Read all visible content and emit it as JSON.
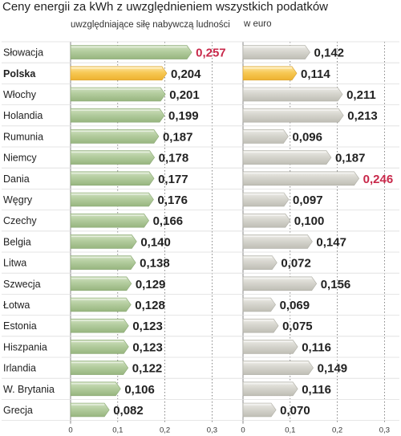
{
  "title": "Ceny energii za kWh z uwzględnieniem wszystkich podatków",
  "chart_data": [
    {
      "type": "bar",
      "orientation": "horizontal",
      "subtitle": "uwzględniające siłę nabywczą ludności",
      "categories": [
        "Słowacja",
        "Polska",
        "Włochy",
        "Holandia",
        "Rumunia",
        "Niemcy",
        "Dania",
        "Węgry",
        "Czechy",
        "Belgia",
        "Litwa",
        "Szwecja",
        "Łotwa",
        "Estonia",
        "Hiszpania",
        "Irlandia",
        "W. Brytania",
        "Grecja"
      ],
      "values": [
        0.257,
        0.204,
        0.201,
        0.199,
        0.187,
        0.178,
        0.177,
        0.176,
        0.166,
        0.14,
        0.138,
        0.129,
        0.128,
        0.123,
        0.123,
        0.122,
        0.106,
        0.082
      ],
      "labels": [
        "0,257",
        "0,204",
        "0,201",
        "0,199",
        "0,187",
        "0,178",
        "0,177",
        "0,176",
        "0,166",
        "0,140",
        "0,138",
        "0,129",
        "0,128",
        "0,123",
        "0,123",
        "0,122",
        "0,106",
        "0,082"
      ],
      "xlim": [
        0,
        0.3
      ],
      "ticks": [
        "0",
        "0,1",
        "0,2",
        "0,3"
      ],
      "highlight_max": "Słowacja",
      "highlight_category": "Polska"
    },
    {
      "type": "bar",
      "orientation": "horizontal",
      "subtitle": "w euro",
      "categories": [
        "Słowacja",
        "Polska",
        "Włochy",
        "Holandia",
        "Rumunia",
        "Niemcy",
        "Dania",
        "Węgry",
        "Czechy",
        "Belgia",
        "Litwa",
        "Szwecja",
        "Łotwa",
        "Estonia",
        "Hiszpania",
        "Irlandia",
        "W. Brytania",
        "Grecja"
      ],
      "values": [
        0.142,
        0.114,
        0.211,
        0.213,
        0.096,
        0.187,
        0.246,
        0.097,
        0.1,
        0.147,
        0.072,
        0.156,
        0.069,
        0.075,
        0.116,
        0.149,
        0.116,
        0.07
      ],
      "labels": [
        "0,142",
        "0,114",
        "0,211",
        "0,213",
        "0,096",
        "0,187",
        "0,246",
        "0,097",
        "0,100",
        "0,147",
        "0,072",
        "0,156",
        "0,069",
        "0,075",
        "0,116",
        "0,149",
        "0,116",
        "0,070"
      ],
      "xlim": [
        0,
        0.3
      ],
      "ticks": [
        "0",
        "0,1",
        "0,2",
        "0,3"
      ],
      "highlight_max": "Dania",
      "highlight_category": "Polska"
    }
  ],
  "colors": {
    "left_bar": "#a9c492",
    "left_bar_light": "#cfe0bf",
    "right_bar": "#cdccc3",
    "right_bar_light": "#e6e5df",
    "highlight_bar": "#f5c24c",
    "highlight_bar_light": "#fbe3a0",
    "red_value": "#c8284a",
    "row_line": "#d9d9d9"
  }
}
